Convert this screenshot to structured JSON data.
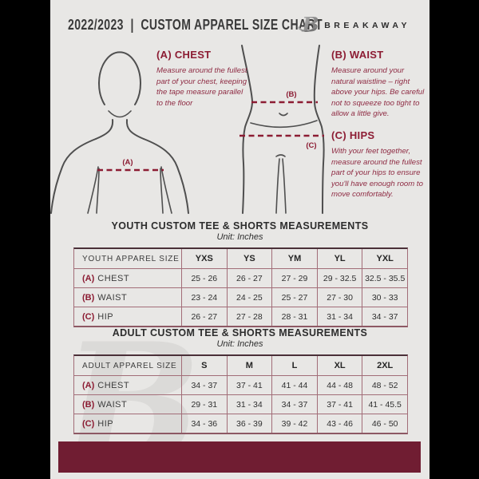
{
  "header": {
    "title": "2022/2023  |  CUSTOM APPAREL SIZE CHART",
    "brand": "BREAKAWAY",
    "logo_letter": "B"
  },
  "measure_guide": {
    "labels": {
      "chest": "(A)",
      "waist": "(B)",
      "hips": "(C)"
    },
    "chest": {
      "heading": "(A) CHEST",
      "body": "Measure around the fullest part of your chest, keeping the tape measure parallel to the floor"
    },
    "waist": {
      "heading": "(B) WAIST",
      "body": "Measure around your natural waistline – right above your hips. Be careful not to squeeze too tight to allow a little give."
    },
    "hips": {
      "heading": "(C) HIPS",
      "body": "With your feet together, measure around the fullest part of your hips to ensure you'll have enough room to move comfortably."
    }
  },
  "youth_section": {
    "title": "YOUTH CUSTOM TEE & SHORTS MEASUREMENTS",
    "unit": "Unit: Inches",
    "table": {
      "header": [
        "YOUTH APPAREL SIZE",
        "YXS",
        "YS",
        "YM",
        "YL",
        "YXL"
      ],
      "rows": [
        {
          "prefix": "(A)",
          "label": "CHEST",
          "values": [
            "25 - 26",
            "26 - 27",
            "27 - 29",
            "29 - 32.5",
            "32.5 - 35.5"
          ]
        },
        {
          "prefix": "(B)",
          "label": "WAIST",
          "values": [
            "23 - 24",
            "24 - 25",
            "25 - 27",
            "27 - 30",
            "30 - 33"
          ]
        },
        {
          "prefix": "(C)",
          "label": "HIP",
          "values": [
            "26 - 27",
            "27 - 28",
            "28 - 31",
            "31 - 34",
            "34 - 37"
          ]
        }
      ]
    }
  },
  "adult_section": {
    "title": "ADULT CUSTOM TEE & SHORTS MEASUREMENTS",
    "unit": "Unit: Inches",
    "table": {
      "header": [
        "ADULT APPAREL SIZE",
        "S",
        "M",
        "L",
        "XL",
        "2XL"
      ],
      "rows": [
        {
          "prefix": "(A)",
          "label": "CHEST",
          "values": [
            "34 - 37",
            "37 - 41",
            "41 - 44",
            "44 - 48",
            "48 - 52"
          ]
        },
        {
          "prefix": "(B)",
          "label": "WAIST",
          "values": [
            "29 - 31",
            "31 - 34",
            "34 - 37",
            "37 - 41",
            "41 - 45.5"
          ]
        },
        {
          "prefix": "(C)",
          "label": "HIP",
          "values": [
            "34 - 36",
            "36 - 39",
            "39 - 42",
            "43 - 46",
            "46 - 50"
          ]
        }
      ]
    }
  },
  "colors": {
    "accent_maroon": "#8c1c33",
    "footer_maroon": "#701d32",
    "table_line": "#a26d78",
    "page_bg": "#e8e7e5",
    "side_bars": "#000000"
  }
}
